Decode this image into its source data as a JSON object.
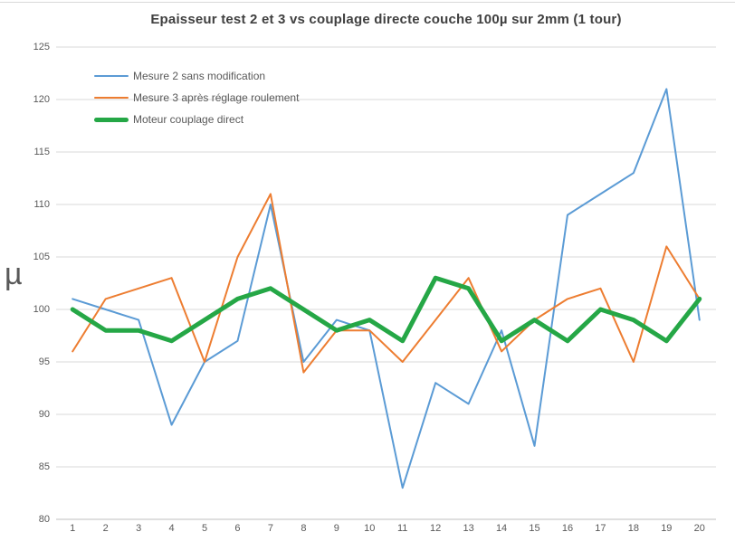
{
  "chart_data": {
    "type": "line",
    "title": "Epaisseur test 2 et 3 vs couplage directe couche 100µ sur 2mm (1 tour)",
    "ylabel": "µ",
    "xlabel": "",
    "x": [
      1,
      2,
      3,
      4,
      5,
      6,
      7,
      8,
      9,
      10,
      11,
      12,
      13,
      14,
      15,
      16,
      17,
      18,
      19,
      20
    ],
    "ylim": [
      80,
      125
    ],
    "yticks": [
      125,
      120,
      115,
      110,
      105,
      100,
      95,
      90,
      85,
      80
    ],
    "grid": true,
    "legend_position": "top-left",
    "gridline_color": "#d9d9d9",
    "axis_line_color": "#bfbfbf",
    "series": [
      {
        "name": "Mesure 2 sans modification",
        "color": "#5b9bd5",
        "stroke_width": 2,
        "values": [
          101,
          100,
          99,
          89,
          95,
          97,
          110,
          95,
          99,
          98,
          83,
          93,
          91,
          98,
          87,
          109,
          111,
          113,
          121,
          99
        ]
      },
      {
        "name": "Mesure 3 après réglage roulement",
        "color": "#ed7d31",
        "stroke_width": 2,
        "values": [
          96,
          101,
          102,
          103,
          95,
          105,
          111,
          94,
          98,
          98,
          95,
          99,
          103,
          96,
          99,
          101,
          102,
          95,
          106,
          101
        ]
      },
      {
        "name": "Moteur couplage direct",
        "color": "#25a746",
        "stroke_width": 5,
        "values": [
          100,
          98,
          98,
          97,
          99,
          101,
          102,
          100,
          98,
          99,
          97,
          103,
          102,
          97,
          99,
          97,
          100,
          99,
          97,
          101
        ]
      }
    ]
  }
}
